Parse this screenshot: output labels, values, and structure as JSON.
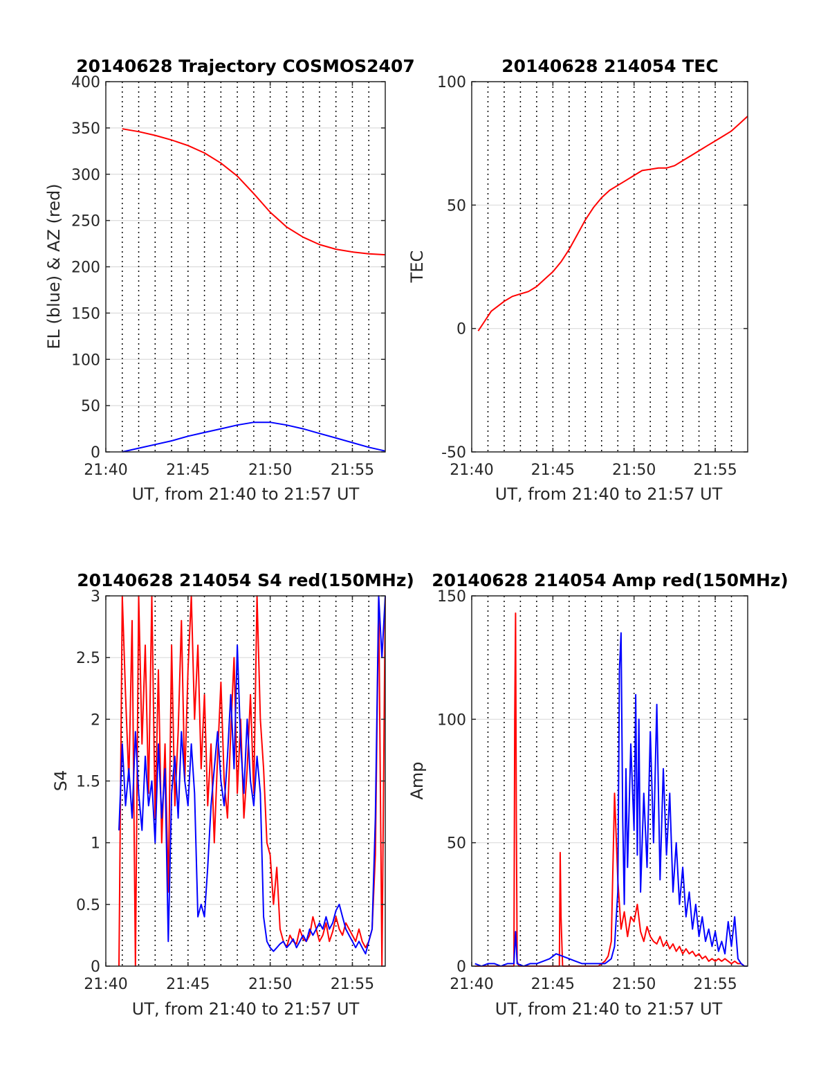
{
  "chart_data": [
    {
      "type": "line",
      "title": "20140628 Trajectory COSMOS2407",
      "xlabel": "UT, from 21:40 to 21:57 UT",
      "ylabel": "EL (blue) & AZ (red)",
      "x_unit": "minutes after 21:40 UT",
      "xlim": [
        0,
        17
      ],
      "ylim": [
        0,
        400
      ],
      "x_ticks": [
        0,
        5,
        10,
        15
      ],
      "x_tick_labels": [
        "21:40",
        "21:45",
        "21:50",
        "21:55"
      ],
      "y_ticks": [
        0,
        50,
        100,
        150,
        200,
        250,
        300,
        350,
        400
      ],
      "y_tick_labels": [
        "0",
        "50",
        "100",
        "150",
        "200",
        "250",
        "300",
        "350",
        "400"
      ],
      "grid": "horizontal solid gridlines, vertical dotted lines every 1 minute",
      "series": [
        {
          "color": "#ff0000",
          "x": [
            1,
            2,
            3,
            4,
            5,
            6,
            7,
            8,
            9,
            10,
            11,
            12,
            13,
            14,
            15,
            16,
            17
          ],
          "values": [
            349,
            346,
            342,
            337,
            331,
            323,
            312,
            298,
            279,
            259,
            243,
            232,
            224,
            219,
            216,
            214,
            213
          ]
        },
        {
          "color": "#0000ff",
          "x": [
            1,
            2,
            3,
            4,
            5,
            6,
            7,
            8,
            9,
            10,
            11,
            12,
            13,
            14,
            15,
            16,
            17
          ],
          "values": [
            0,
            4,
            8,
            12,
            17,
            21,
            25,
            29,
            32,
            32,
            29,
            25,
            20,
            15,
            10,
            5,
            1
          ]
        }
      ]
    },
    {
      "type": "line",
      "title": "20140628 214054 TEC",
      "xlabel": "UT, from 21:40 to 21:57 UT",
      "ylabel": "TEC",
      "x_unit": "minutes after 21:40 UT",
      "xlim": [
        0,
        17
      ],
      "ylim": [
        -50,
        100
      ],
      "x_ticks": [
        0,
        5,
        10,
        15
      ],
      "x_tick_labels": [
        "21:40",
        "21:45",
        "21:50",
        "21:55"
      ],
      "y_ticks": [
        -50,
        0,
        50,
        100
      ],
      "y_tick_labels": [
        "-50",
        "0",
        "50",
        "100"
      ],
      "grid": "horizontal solid gridlines, vertical dotted lines every 1 minute",
      "series": [
        {
          "color": "#ff0000",
          "x": [
            0.4,
            0.8,
            1.2,
            1.6,
            2.0,
            2.5,
            3.0,
            3.5,
            4.0,
            4.5,
            5.0,
            5.5,
            6.0,
            6.5,
            7.0,
            7.5,
            8.0,
            8.5,
            9.0,
            9.5,
            10.0,
            10.5,
            11.0,
            11.5,
            12.0,
            12.5,
            13.0,
            13.5,
            14.0,
            14.5,
            15.0,
            15.5,
            16.0,
            16.5,
            17.0
          ],
          "values": [
            -1,
            3,
            7,
            9,
            11,
            13,
            14,
            15,
            17,
            20,
            23,
            27,
            32,
            38,
            44,
            49,
            53,
            56,
            58,
            60,
            62,
            64,
            64.5,
            65,
            65,
            66,
            68,
            70,
            72,
            74,
            76,
            78,
            80,
            83,
            86
          ]
        }
      ]
    },
    {
      "type": "line",
      "title": "20140628 214054 S4 red(150MHz)",
      "xlabel": "UT, from 21:40 to 21:57 UT",
      "ylabel": "S4",
      "x_unit": "minutes after 21:40 UT",
      "xlim": [
        0,
        17
      ],
      "ylim": [
        0,
        3
      ],
      "x_ticks": [
        0,
        5,
        10,
        15
      ],
      "x_tick_labels": [
        "21:40",
        "21:45",
        "21:50",
        "21:55"
      ],
      "y_ticks": [
        0,
        0.5,
        1,
        1.5,
        2,
        2.5,
        3
      ],
      "y_tick_labels": [
        "0",
        "0.5",
        "1",
        "1.5",
        "2",
        "2.5",
        "3"
      ],
      "grid": "horizontal solid gridlines, vertical dotted lines every 1 minute",
      "series": [
        {
          "color": "#ff0000",
          "x": [
            0.8,
            1.0,
            1.2,
            1.4,
            1.6,
            1.8,
            2.0,
            2.2,
            2.4,
            2.6,
            2.8,
            3.0,
            3.2,
            3.4,
            3.6,
            3.8,
            4.0,
            4.2,
            4.4,
            4.6,
            4.8,
            5.0,
            5.2,
            5.4,
            5.6,
            5.8,
            6.0,
            6.2,
            6.4,
            6.6,
            6.8,
            7.0,
            7.2,
            7.4,
            7.6,
            7.8,
            8.0,
            8.2,
            8.4,
            8.6,
            8.8,
            9.0,
            9.2,
            9.4,
            9.6,
            9.8,
            10.0,
            10.2,
            10.4,
            10.6,
            10.8,
            11.0,
            11.2,
            11.4,
            11.6,
            11.8,
            12.0,
            12.2,
            12.4,
            12.6,
            12.8,
            13.0,
            13.2,
            13.4,
            13.6,
            13.8,
            14.0,
            14.2,
            14.4,
            14.6,
            14.8,
            15.0,
            15.2,
            15.4,
            15.6,
            15.8,
            16.0,
            16.2,
            16.4,
            16.6,
            16.8,
            17.0
          ],
          "values": [
            0,
            3,
            2.2,
            1.5,
            2.8,
            0,
            3,
            1.8,
            2.6,
            1.4,
            3,
            1.2,
            2.4,
            1.0,
            1.8,
            0.6,
            2.6,
            1.3,
            1.9,
            2.8,
            1.5,
            2.4,
            3,
            2.0,
            2.6,
            1.6,
            2.2,
            1.3,
            1.8,
            1.0,
            1.7,
            2.3,
            1.5,
            1.2,
            1.9,
            2.5,
            1.4,
            2.0,
            1.2,
            1.6,
            2.2,
            1.4,
            3,
            2.0,
            1.6,
            1.0,
            0.9,
            0.5,
            0.8,
            0.3,
            0.2,
            0.15,
            0.25,
            0.2,
            0.18,
            0.3,
            0.22,
            0.2,
            0.25,
            0.4,
            0.3,
            0.2,
            0.25,
            0.35,
            0.2,
            0.28,
            0.4,
            0.3,
            0.25,
            0.35,
            0.3,
            0.25,
            0.2,
            0.3,
            0.2,
            0.15,
            0.2,
            0.3,
            0.9,
            3,
            0,
            3
          ]
        },
        {
          "color": "#0000ff",
          "x": [
            0.8,
            1.0,
            1.2,
            1.4,
            1.6,
            1.8,
            2.0,
            2.2,
            2.4,
            2.6,
            2.8,
            3.0,
            3.2,
            3.4,
            3.6,
            3.8,
            4.0,
            4.2,
            4.4,
            4.6,
            4.8,
            5.0,
            5.2,
            5.4,
            5.6,
            5.8,
            6.0,
            6.2,
            6.4,
            6.6,
            6.8,
            7.0,
            7.2,
            7.4,
            7.6,
            7.8,
            8.0,
            8.2,
            8.4,
            8.6,
            8.8,
            9.0,
            9.2,
            9.4,
            9.6,
            9.8,
            10.0,
            10.2,
            10.4,
            10.6,
            10.8,
            11.0,
            11.2,
            11.4,
            11.6,
            11.8,
            12.0,
            12.2,
            12.4,
            12.6,
            12.8,
            13.0,
            13.2,
            13.4,
            13.6,
            13.8,
            14.0,
            14.2,
            14.4,
            14.6,
            14.8,
            15.0,
            15.2,
            15.4,
            15.6,
            15.8,
            16.0,
            16.2,
            16.4,
            16.6,
            16.8,
            17.0
          ],
          "values": [
            1.1,
            1.8,
            1.3,
            1.6,
            1.2,
            1.9,
            1.4,
            1.1,
            1.7,
            1.3,
            1.5,
            1.0,
            1.8,
            1.2,
            1.6,
            0.2,
            1.4,
            1.7,
            1.2,
            1.9,
            1.5,
            1.3,
            1.8,
            1.4,
            0.4,
            0.5,
            0.4,
            0.8,
            1.3,
            1.6,
            1.9,
            1.5,
            1.3,
            1.7,
            2.2,
            1.6,
            2.6,
            1.8,
            1.4,
            2.0,
            1.5,
            1.3,
            1.7,
            1.4,
            0.4,
            0.2,
            0.15,
            0.12,
            0.15,
            0.18,
            0.2,
            0.15,
            0.18,
            0.22,
            0.15,
            0.2,
            0.25,
            0.2,
            0.3,
            0.25,
            0.3,
            0.35,
            0.3,
            0.4,
            0.3,
            0.35,
            0.45,
            0.5,
            0.4,
            0.3,
            0.25,
            0.2,
            0.15,
            0.2,
            0.15,
            0.1,
            0.2,
            0.3,
            1.2,
            3,
            2.5,
            3
          ]
        }
      ]
    },
    {
      "type": "line",
      "title": "20140628 214054 Amp red(150MHz)",
      "xlabel": "UT, from 21:40 to 21:57 UT",
      "ylabel": "Amp",
      "x_unit": "minutes after 21:40 UT",
      "xlim": [
        0,
        17
      ],
      "ylim": [
        0,
        150
      ],
      "x_ticks": [
        0,
        5,
        10,
        15
      ],
      "x_tick_labels": [
        "21:40",
        "21:45",
        "21:50",
        "21:55"
      ],
      "y_ticks": [
        0,
        50,
        100,
        150
      ],
      "y_tick_labels": [
        "0",
        "50",
        "100",
        "150"
      ],
      "grid": "horizontal solid gridlines, vertical dotted lines every 1 minute",
      "series": [
        {
          "color": "#ff0000",
          "x": [
            0.2,
            0.6,
            1.0,
            1.4,
            1.8,
            2.2,
            2.6,
            2.65,
            2.7,
            2.75,
            2.8,
            2.9,
            3.2,
            3.6,
            4.0,
            4.4,
            4.8,
            5.2,
            5.4,
            5.45,
            5.5,
            5.6,
            5.8,
            6.2,
            6.6,
            7.0,
            7.4,
            7.8,
            8.0,
            8.2,
            8.4,
            8.6,
            8.8,
            9.0,
            9.2,
            9.4,
            9.6,
            9.8,
            10.0,
            10.2,
            10.4,
            10.6,
            10.8,
            11.0,
            11.2,
            11.4,
            11.6,
            11.8,
            12.0,
            12.2,
            12.4,
            12.6,
            12.8,
            13.0,
            13.2,
            13.4,
            13.6,
            13.8,
            14.0,
            14.2,
            14.4,
            14.6,
            14.8,
            15.0,
            15.2,
            15.4,
            15.6,
            15.8,
            16.0,
            16.2,
            16.4,
            16.6,
            16.8,
            17.0
          ],
          "values": [
            0,
            0,
            0,
            0,
            0,
            0,
            0,
            100,
            143,
            60,
            2,
            0,
            0,
            0,
            0,
            0,
            0,
            0,
            0,
            46,
            20,
            0,
            0,
            0,
            0,
            0,
            0,
            0,
            1,
            2,
            4,
            10,
            70,
            35,
            15,
            22,
            12,
            20,
            18,
            25,
            14,
            10,
            16,
            12,
            10,
            9,
            12,
            8,
            10,
            7,
            9,
            6,
            8,
            5,
            7,
            5,
            6,
            4,
            5,
            3,
            4,
            2,
            3,
            2,
            3,
            2,
            3,
            2,
            1,
            2,
            1,
            1,
            0,
            0
          ]
        },
        {
          "color": "#0000ff",
          "x": [
            0.2,
            0.6,
            1.0,
            1.4,
            1.8,
            2.2,
            2.6,
            2.7,
            2.8,
            3.2,
            3.6,
            4.0,
            4.4,
            4.8,
            5.2,
            5.6,
            6.0,
            6.4,
            6.8,
            7.2,
            7.6,
            8.0,
            8.2,
            8.4,
            8.6,
            8.8,
            9.0,
            9.1,
            9.2,
            9.3,
            9.4,
            9.5,
            9.6,
            9.8,
            10.0,
            10.1,
            10.2,
            10.3,
            10.4,
            10.6,
            10.8,
            11.0,
            11.2,
            11.4,
            11.6,
            11.8,
            12.0,
            12.2,
            12.4,
            12.6,
            12.8,
            13.0,
            13.2,
            13.4,
            13.6,
            13.8,
            14.0,
            14.2,
            14.4,
            14.6,
            14.8,
            15.0,
            15.2,
            15.4,
            15.6,
            15.8,
            16.0,
            16.2,
            16.4,
            16.6,
            16.8,
            17.0
          ],
          "values": [
            1,
            0,
            1,
            1,
            0,
            1,
            1,
            14,
            1,
            0,
            1,
            1,
            2,
            3,
            5,
            4,
            3,
            2,
            1,
            1,
            1,
            1,
            1,
            2,
            3,
            8,
            30,
            120,
            135,
            60,
            25,
            80,
            40,
            90,
            55,
            110,
            45,
            100,
            30,
            70,
            40,
            95,
            50,
            106,
            35,
            80,
            45,
            70,
            30,
            50,
            25,
            40,
            20,
            30,
            15,
            25,
            12,
            20,
            10,
            15,
            8,
            14,
            6,
            10,
            5,
            18,
            8,
            20,
            3,
            1,
            0,
            0
          ]
        }
      ]
    }
  ]
}
